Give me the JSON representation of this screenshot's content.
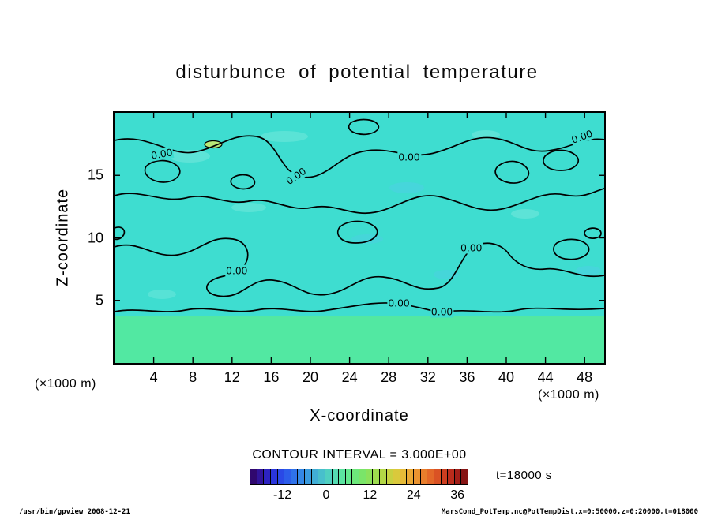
{
  "footer": {
    "left": "/usr/bin/gpview  2008-12-21",
    "right": "MarsCond_PotTemp.nc@PotTempDist,x=0:50000,z=0:20000,t=018000"
  },
  "chart_data": {
    "type": "heatmap",
    "plot_style": "filled-contour",
    "title": "disturbunce of potential temperature",
    "xlabel": "X-coordinate",
    "ylabel": "Z-coordinate",
    "x_units": "(×1000 m)",
    "y_units": "(×1000 m)",
    "xlim": [
      0,
      50
    ],
    "ylim": [
      0,
      20
    ],
    "x_ticks": [
      4,
      8,
      12,
      16,
      20,
      24,
      28,
      32,
      36,
      40,
      44,
      48
    ],
    "y_ticks": [
      5,
      10,
      15
    ],
    "contour_interval": 3.0,
    "contour_info_label": "CONTOUR INTERVAL = 3.000E+00",
    "time_label": "t=18000 s",
    "contour_level_shown": 0.0,
    "contour_labels": [
      {
        "text": "0.00",
        "x_pct": 9.7,
        "y_pct": 16.4,
        "rot": -10
      },
      {
        "text": "0.00",
        "x_pct": 37.1,
        "y_pct": 25.2,
        "rot": -35
      },
      {
        "text": "0.00",
        "x_pct": 60.2,
        "y_pct": 17.7,
        "rot": 0
      },
      {
        "text": "0.00",
        "x_pct": 95.5,
        "y_pct": 9.5,
        "rot": -20
      },
      {
        "text": "0.00",
        "x_pct": 72.9,
        "y_pct": 53.8,
        "rot": 0
      },
      {
        "text": "0.00",
        "x_pct": 25.0,
        "y_pct": 63.1,
        "rot": 0
      },
      {
        "text": "0.00",
        "x_pct": 58.1,
        "y_pct": 76.0,
        "rot": 0
      },
      {
        "text": "0.00",
        "x_pct": 66.9,
        "y_pct": 79.5,
        "rot": 0
      }
    ],
    "colors": {
      "plot_bg": "#3eddd0",
      "bottom_band": "#52e8a2",
      "patch_light": "#7ceade",
      "patch_blue": "#55c8f0",
      "spot": "#b8e878",
      "contour_line": "#000000"
    },
    "colorbar": {
      "ticks": [
        -12,
        0,
        12,
        24,
        36
      ],
      "range": [
        -21,
        39
      ],
      "colors": [
        "#30086e",
        "#31149a",
        "#2d23c2",
        "#2a35dc",
        "#2a49e6",
        "#2c5dea",
        "#2f72ea",
        "#3487e6",
        "#3a9bdf",
        "#41aed6",
        "#48bfcc",
        "#4fcfc0",
        "#55dcb2",
        "#5be4a0",
        "#63e88d",
        "#6de87b",
        "#7ae569",
        "#8be15b",
        "#9edc4f",
        "#b3d746",
        "#c8d140",
        "#dac93c",
        "#e6bb38",
        "#eaa834",
        "#ea9330",
        "#e87e2c",
        "#e36828",
        "#da5224",
        "#cc3e20",
        "#ba2c1c",
        "#a21e18",
        "#861414"
      ]
    }
  }
}
